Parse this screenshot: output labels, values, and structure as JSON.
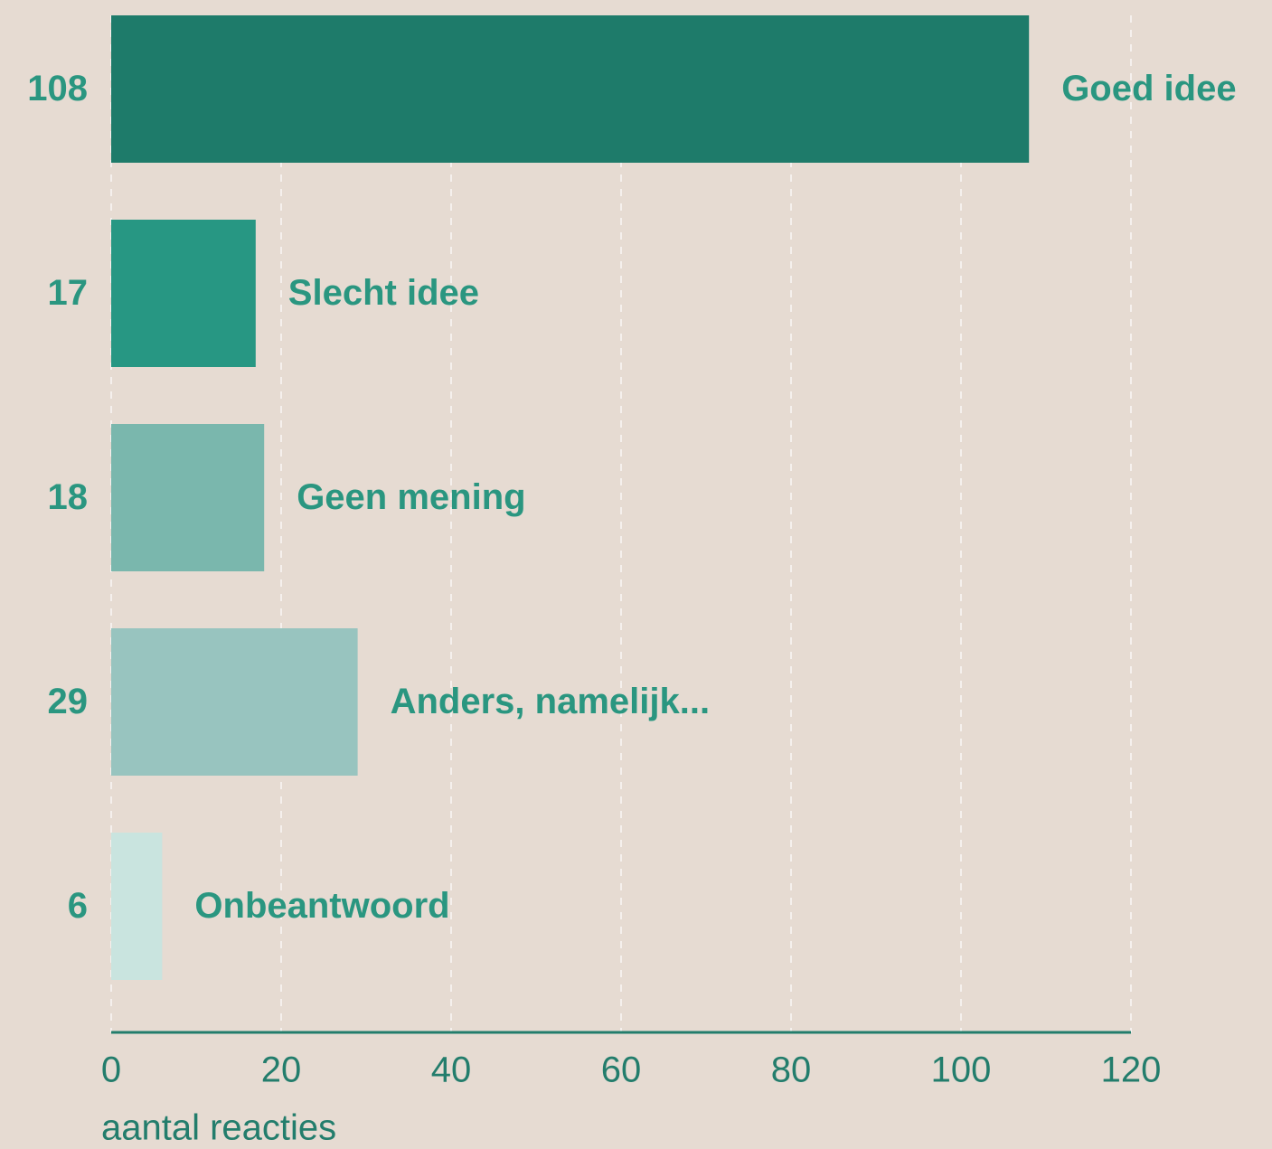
{
  "chart_data": {
    "type": "bar",
    "orientation": "horizontal",
    "categories": [
      "Goed idee",
      "Slecht idee",
      "Geen mening",
      "Anders, namelijk...",
      "Onbeantwoord"
    ],
    "values": [
      108,
      17,
      18,
      29,
      6
    ],
    "colors": [
      "#1e7b6a",
      "#279783",
      "#7ab7ad",
      "#98c4bf",
      "#c9e4df"
    ],
    "xlabel": "aantal reacties",
    "xlim": [
      0,
      120
    ],
    "xticks": [
      0,
      20,
      40,
      60,
      80,
      100,
      120
    ],
    "grid": true
  }
}
